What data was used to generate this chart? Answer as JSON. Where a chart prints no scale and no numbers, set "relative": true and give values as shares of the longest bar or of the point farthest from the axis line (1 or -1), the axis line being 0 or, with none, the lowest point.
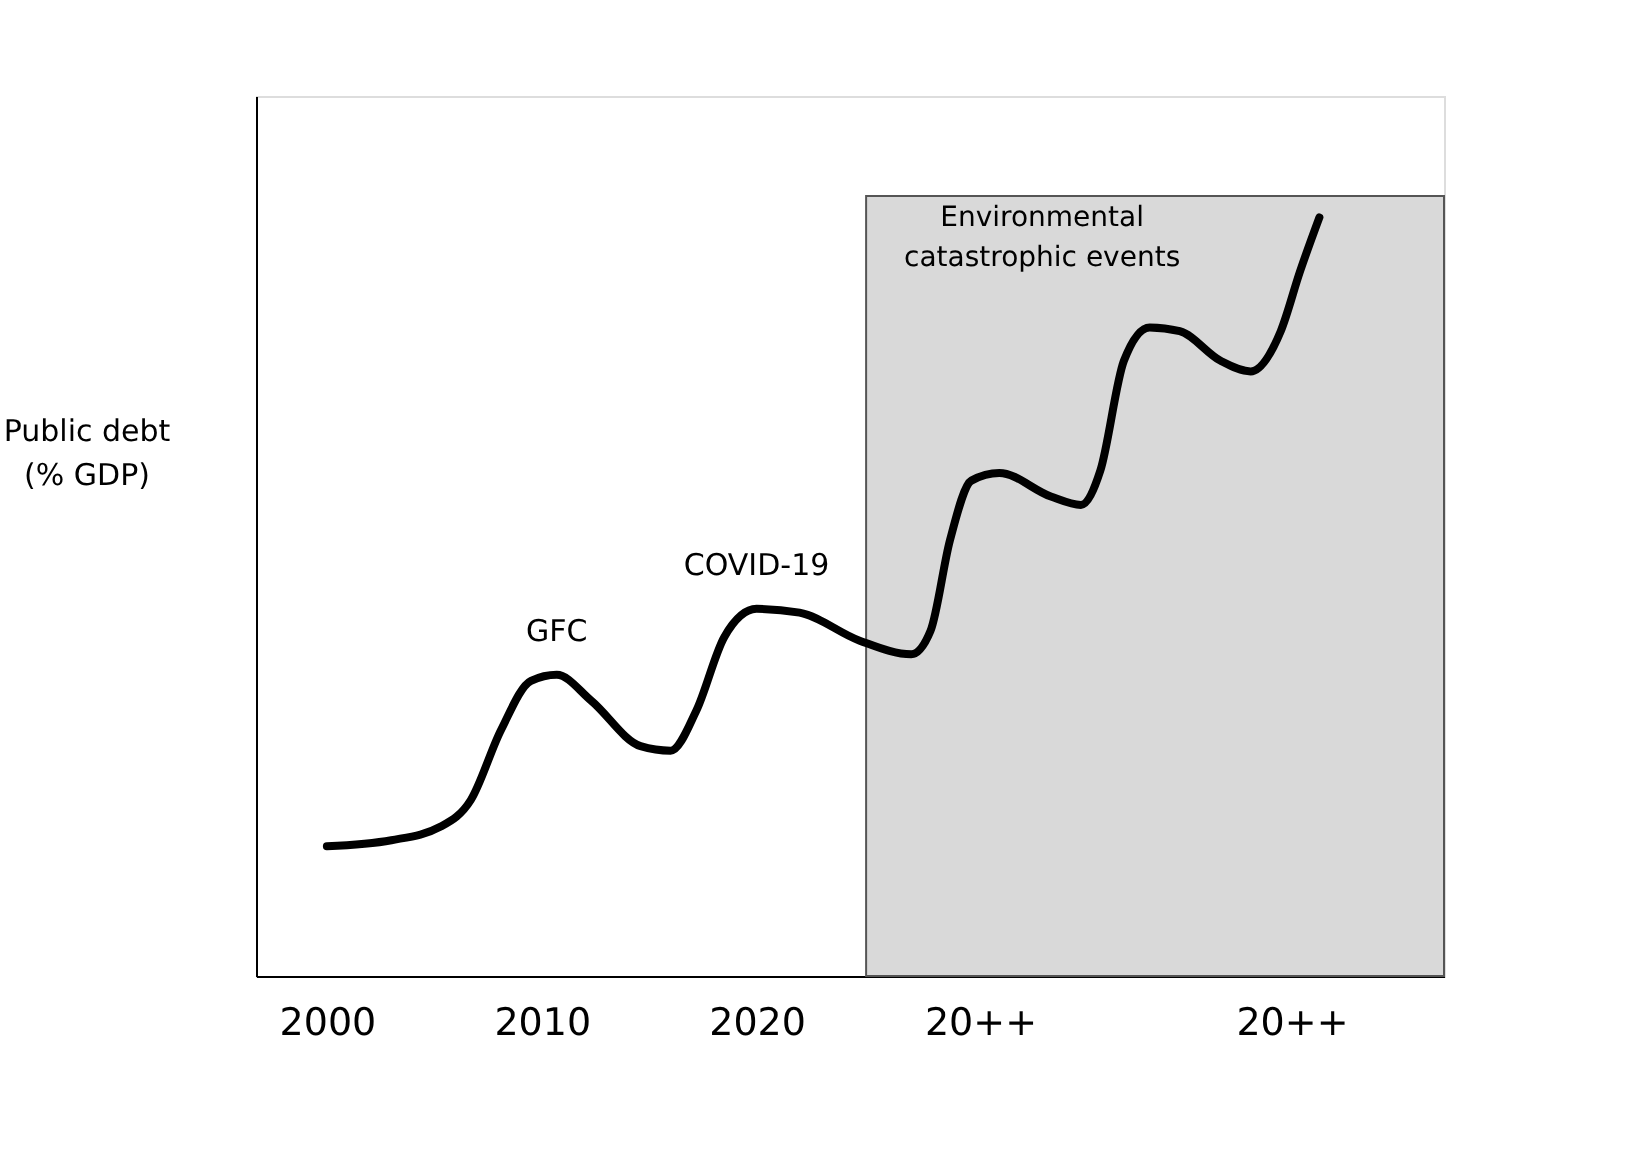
{
  "chart_data": {
    "type": "line",
    "relative": true,
    "ylabel": "Public debt\n(% GDP)",
    "xlim": [
      1996.7,
      2052.0
    ],
    "xticks": [
      2000,
      2010,
      2020,
      {
        "value": 2030.4,
        "label": "20++"
      },
      {
        "value": 2044.9,
        "label": "20++"
      }
    ],
    "tick_labels": "x",
    "grid": false,
    "marker": "none",
    "line_style": "solid",
    "bands": [
      {
        "axis": "x",
        "from": 2025.1,
        "to": 2052.0,
        "label": "Environmental\ncatastrophic events",
        "color": "#d9d9d9"
      }
    ],
    "annotations": [
      {
        "text": "GFC",
        "x": 2010.7,
        "y": 0.397
      },
      {
        "text": "COVID-19",
        "x": 2020.0,
        "y": 0.484
      }
    ],
    "series": [
      {
        "color": "#000000",
        "x": [
          2000.0,
          2003.0,
          2005.3,
          2006.7,
          2008.1,
          2009.5,
          2010.7,
          2012.3,
          2014.6,
          2016.0,
          2017.2,
          2018.5,
          2020.0,
          2022.0,
          2024.8,
          2027.2,
          2028.1,
          2029.0,
          2030.0,
          2031.3,
          2033.7,
          2035.1,
          2036.0,
          2037.1,
          2038.3,
          2039.7,
          2041.6,
          2043.0,
          2044.4,
          2045.3,
          2046.2
        ],
        "values": [
          0.171,
          0.179,
          0.197,
          0.232,
          0.324,
          0.389,
          0.397,
          0.363,
          0.303,
          0.297,
          0.35,
          0.447,
          0.484,
          0.479,
          0.442,
          0.424,
          0.455,
          0.574,
          0.653,
          0.663,
          0.632,
          0.621,
          0.666,
          0.811,
          0.855,
          0.85,
          0.811,
          0.797,
          0.85,
          0.929,
          1.0
        ]
      }
    ]
  }
}
